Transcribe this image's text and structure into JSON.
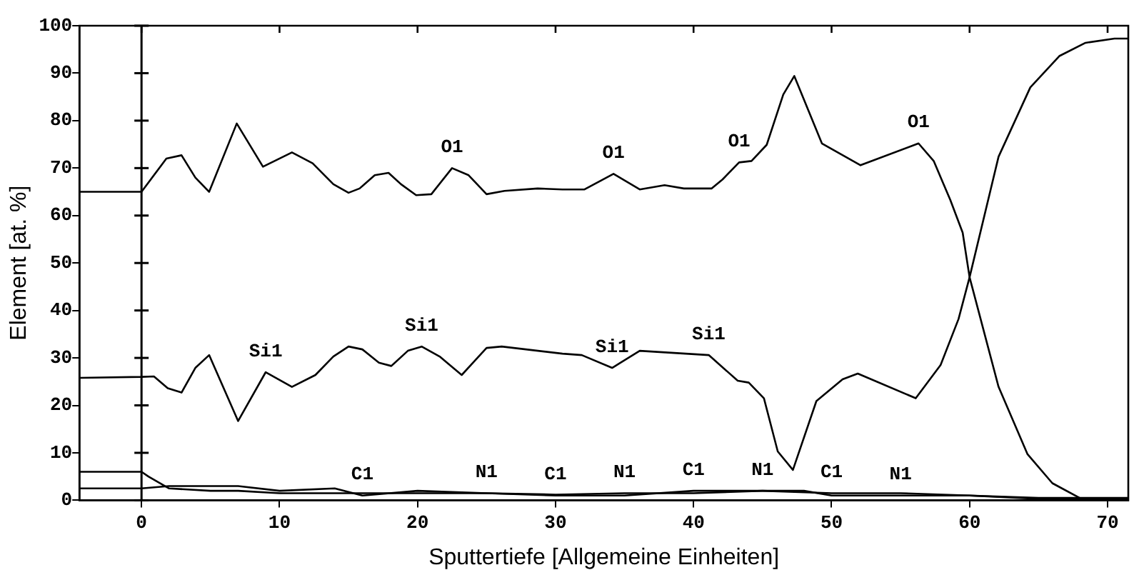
{
  "chart_data": {
    "type": "line",
    "xlabel": "Sputtertiefe [Allgemeine Einheiten]",
    "ylabel": "Element [at. %]",
    "xlim": [
      -4.5,
      71.5
    ],
    "xticks": [
      0,
      10,
      20,
      30,
      40,
      50,
      60,
      70
    ],
    "ylim": [
      0,
      100
    ],
    "yticks": [
      0,
      10,
      20,
      30,
      40,
      50,
      60,
      70,
      80,
      90,
      100
    ],
    "grid": false,
    "legend": false,
    "marker": "none",
    "line_style": "solid",
    "ref_lines": [
      {
        "axis": "x",
        "value": 0,
        "label": null,
        "color": "#000000"
      }
    ],
    "series": [
      {
        "color": "#000000",
        "x": [
          -4.5,
          0,
          1.8,
          2.9,
          3.9,
          4.9,
          6.9,
          8.8,
          10.9,
          12.4,
          13.9,
          15,
          15.8,
          16.9,
          17.9,
          18.8,
          19.9,
          21,
          22.5,
          23.7,
          25,
          26.3,
          28.7,
          30.5,
          32.1,
          34.2,
          36.1,
          37.9,
          39.3,
          41.3,
          42.1,
          43.3,
          44.2,
          45.3,
          46.5,
          47.3,
          49.3,
          52.1,
          56.3,
          57.4,
          58.6,
          59.5,
          60,
          62.1,
          64.2,
          66,
          68.1,
          71.5
        ],
        "values": [
          65,
          65,
          72,
          72.7,
          68,
          65,
          79.4,
          70.3,
          73.3,
          71,
          66.6,
          64.8,
          65.7,
          68.5,
          69,
          66.6,
          64.3,
          64.5,
          70,
          68.5,
          64.5,
          65.2,
          65.7,
          65.5,
          65.5,
          68.8,
          65.5,
          66.4,
          65.7,
          65.7,
          67.6,
          71.2,
          71.5,
          74.9,
          85.5,
          89.4,
          75.2,
          70.6,
          75.2,
          71.5,
          63.3,
          56.4,
          47,
          23.9,
          9.7,
          3.6,
          0.3,
          0
        ]
      },
      {
        "color": "#000000",
        "x": [
          -4.5,
          0,
          0.9,
          1.9,
          2.9,
          3.9,
          4.9,
          7,
          9,
          10.9,
          12.6,
          13.9,
          15,
          16,
          17.2,
          18.1,
          19.3,
          20.3,
          21.6,
          23.2,
          25,
          26.1,
          30.5,
          31.9,
          34.1,
          36.1,
          41.1,
          43.2,
          44,
          45.1,
          46.1,
          47.2,
          48.9,
          50.8,
          51.9,
          56.1,
          57.9,
          59.2,
          60,
          62.1,
          64.4,
          66.5,
          68.4,
          70.5,
          71.5
        ],
        "values": [
          25.8,
          26,
          26.1,
          23.6,
          22.7,
          27.9,
          30.6,
          16.7,
          27,
          23.9,
          26.4,
          30.3,
          32.4,
          31.8,
          29,
          28.3,
          31.5,
          32.4,
          30.3,
          26.4,
          32.1,
          32.4,
          30.9,
          30.6,
          27.9,
          31.5,
          30.6,
          25.2,
          24.8,
          21.5,
          10.3,
          6.4,
          20.9,
          25.5,
          26.7,
          21.5,
          28.5,
          38.2,
          47,
          72.4,
          87,
          93.6,
          96.4,
          97.3,
          97.3
        ]
      },
      {
        "color": "#000000",
        "x": [
          -4.5,
          0,
          0.5,
          2,
          5,
          7,
          10,
          15,
          20,
          25,
          30,
          35,
          40,
          45,
          48,
          50,
          55,
          60,
          65,
          71.5
        ],
        "values": [
          6,
          6,
          5,
          2.5,
          2,
          2,
          1.5,
          1.5,
          1.5,
          1.5,
          1.2,
          1.5,
          1.5,
          2,
          2,
          1,
          1,
          1,
          0.5,
          0.5
        ]
      },
      {
        "color": "#000000",
        "x": [
          -4.5,
          0,
          2,
          7,
          10,
          14,
          16,
          20,
          25,
          30,
          35,
          40,
          45,
          50,
          55,
          60,
          65,
          71.5
        ],
        "values": [
          2.5,
          2.5,
          3,
          3,
          2,
          2.5,
          1,
          2,
          1.5,
          1,
          1,
          2,
          2,
          1.5,
          1.5,
          1,
          0.3,
          0.3
        ]
      }
    ],
    "annotations": [
      {
        "text": "O1",
        "x": 22.5,
        "y": 70
      },
      {
        "text": "O1",
        "x": 34.2,
        "y": 68.8
      },
      {
        "text": "O1",
        "x": 43.3,
        "y": 71.2
      },
      {
        "text": "O1",
        "x": 56.3,
        "y": 75.2
      },
      {
        "text": "Si1",
        "x": 9,
        "y": 27
      },
      {
        "text": "Si1",
        "x": 20.3,
        "y": 32.4
      },
      {
        "text": "Si1",
        "x": 34.1,
        "y": 27.9
      },
      {
        "text": "Si1",
        "x": 41.1,
        "y": 30.6
      },
      {
        "text": "C1",
        "x": 16,
        "y": 1
      },
      {
        "text": "N1",
        "x": 25,
        "y": 1.5
      },
      {
        "text": "C1",
        "x": 30,
        "y": 1
      },
      {
        "text": "N1",
        "x": 35,
        "y": 1.5
      },
      {
        "text": "C1",
        "x": 40,
        "y": 2
      },
      {
        "text": "N1",
        "x": 45,
        "y": 2
      },
      {
        "text": "C1",
        "x": 50,
        "y": 1.5
      },
      {
        "text": "N1",
        "x": 55,
        "y": 1
      }
    ]
  }
}
